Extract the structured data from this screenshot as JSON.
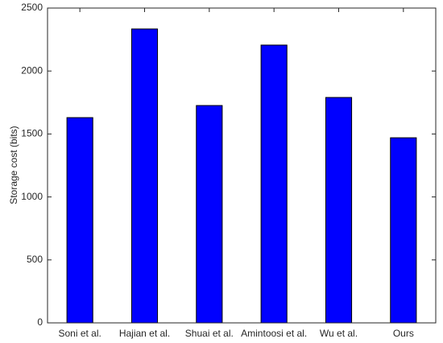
{
  "chart_data": {
    "type": "bar",
    "y_label": "Storage cost (bits)",
    "categories": [
      "Soni et al.",
      "Hajian et al.",
      "Shuai et al.",
      "Amintoosi et al.",
      "Wu et al.",
      "Ours"
    ],
    "values": [
      1630,
      2334,
      1726,
      2206,
      1790,
      1470
    ],
    "color": "#0000ff",
    "ylim": [
      0,
      2500
    ],
    "yticks": [
      0,
      500,
      1000,
      1500,
      2000,
      2500
    ],
    "grid": false
  }
}
